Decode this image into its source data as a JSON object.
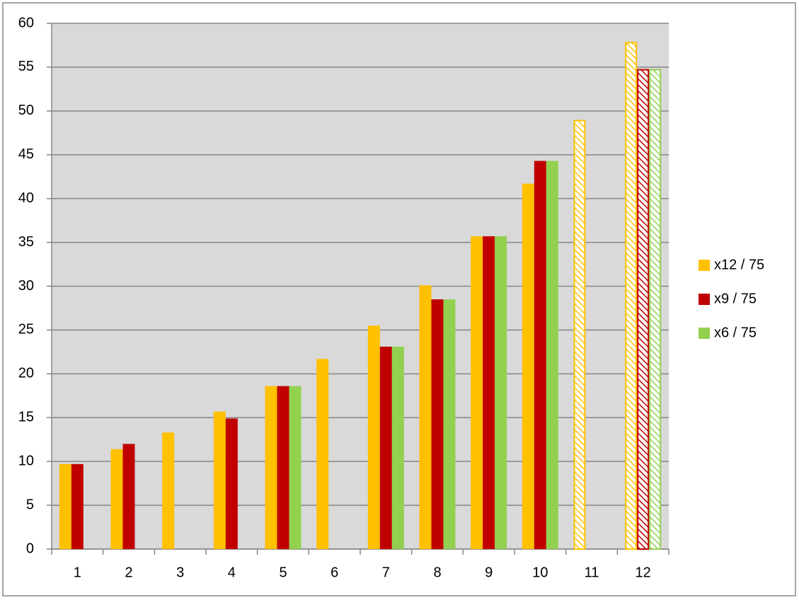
{
  "chart_data": {
    "type": "bar",
    "categories": [
      "1",
      "2",
      "3",
      "4",
      "5",
      "6",
      "7",
      "8",
      "9",
      "10",
      "11",
      "12"
    ],
    "series": [
      {
        "name": "x12 / 75",
        "color": "#ffc000",
        "values": [
          9.7,
          11.4,
          13.3,
          15.7,
          18.6,
          21.7,
          25.5,
          30.1,
          35.7,
          41.7,
          48.9,
          57.8
        ]
      },
      {
        "name": "x9 / 75",
        "color": "#c00000",
        "values": [
          9.7,
          12.0,
          null,
          14.9,
          18.6,
          null,
          23.1,
          28.5,
          35.7,
          44.3,
          null,
          54.7
        ]
      },
      {
        "name": "x6 / 75",
        "color": "#92d050",
        "values": [
          null,
          null,
          null,
          null,
          18.6,
          null,
          23.1,
          28.5,
          35.7,
          44.3,
          null,
          54.7
        ]
      }
    ],
    "hatched": [
      false,
      false,
      false,
      false,
      false,
      false,
      false,
      false,
      false,
      false,
      true,
      true
    ],
    "ylim": [
      0,
      60
    ],
    "yticks": [
      0,
      5,
      10,
      15,
      20,
      25,
      30,
      35,
      40,
      45,
      50,
      55,
      60
    ],
    "grid": true,
    "legend": "right"
  }
}
